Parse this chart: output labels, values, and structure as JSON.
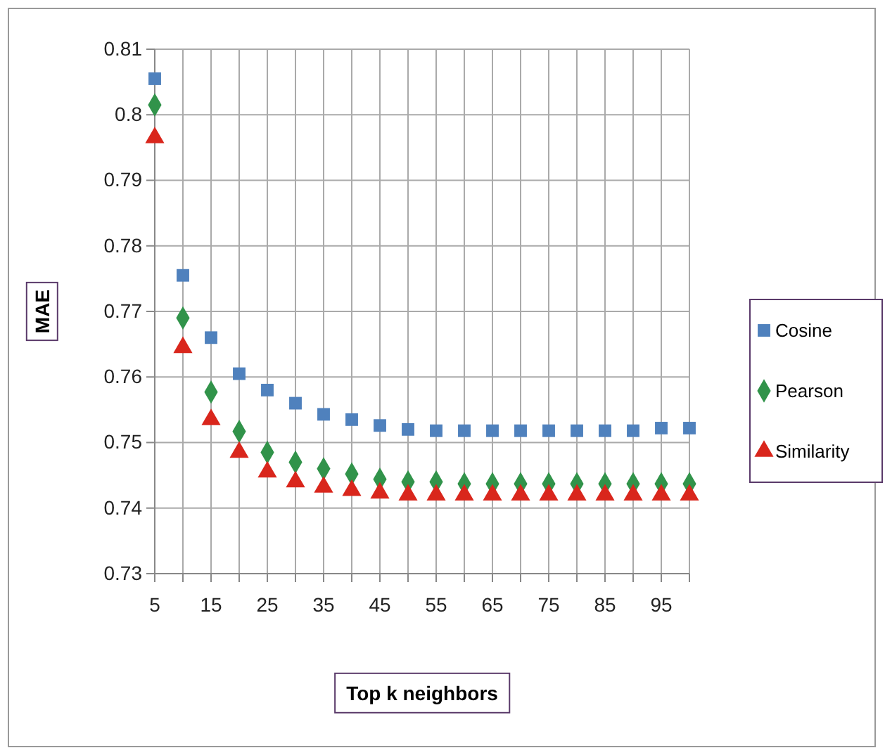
{
  "chart_data": {
    "type": "scatter",
    "xlabel": "Top k neighbors",
    "ylabel": "MAE",
    "x": [
      5,
      10,
      15,
      20,
      25,
      30,
      35,
      40,
      45,
      50,
      55,
      60,
      65,
      70,
      75,
      80,
      85,
      90,
      95,
      100
    ],
    "xlim": [
      5,
      100
    ],
    "xticks": [
      5,
      {
        "value": 10,
        "label": null
      },
      15,
      {
        "value": 20,
        "label": null
      },
      25,
      {
        "value": 30,
        "label": null
      },
      35,
      {
        "value": 40,
        "label": null
      },
      45,
      {
        "value": 50,
        "label": null
      },
      55,
      {
        "value": 60,
        "label": null
      },
      65,
      {
        "value": 70,
        "label": null
      },
      75,
      {
        "value": 80,
        "label": null
      },
      85,
      {
        "value": 90,
        "label": null
      },
      95,
      {
        "value": 100,
        "label": null
      }
    ],
    "ylim": [
      0.73,
      0.81
    ],
    "yticks": [
      0.73,
      0.74,
      0.75,
      0.76,
      0.77,
      0.78,
      0.79,
      0.8,
      0.81
    ],
    "grid": true,
    "legend": "right",
    "series": [
      {
        "name": "Cosine",
        "color": "#4f81bd",
        "marker": "square",
        "values": [
          0.8055,
          0.7755,
          0.766,
          0.7605,
          0.758,
          0.756,
          0.7543,
          0.7535,
          0.7526,
          0.752,
          0.7518,
          0.7518,
          0.7518,
          0.7518,
          0.7518,
          0.7518,
          0.7518,
          0.7518,
          0.7522,
          0.7522
        ]
      },
      {
        "name": "Pearson",
        "color": "#31934a",
        "marker": "diamond",
        "values": [
          0.8015,
          0.769,
          0.7577,
          0.7517,
          0.7485,
          0.747,
          0.746,
          0.7452,
          0.7444,
          0.744,
          0.744,
          0.7437,
          0.7437,
          0.7437,
          0.7437,
          0.7437,
          0.7437,
          0.7437,
          0.7437,
          0.7437
        ]
      },
      {
        "name": "Similarity",
        "color": "#d9261c",
        "marker": "triangle",
        "values": [
          0.7965,
          0.7645,
          0.7535,
          0.7485,
          0.7455,
          0.744,
          0.7432,
          0.7427,
          0.7423,
          0.742,
          0.742,
          0.742,
          0.742,
          0.742,
          0.742,
          0.742,
          0.742,
          0.742,
          0.742,
          0.742
        ]
      }
    ]
  }
}
